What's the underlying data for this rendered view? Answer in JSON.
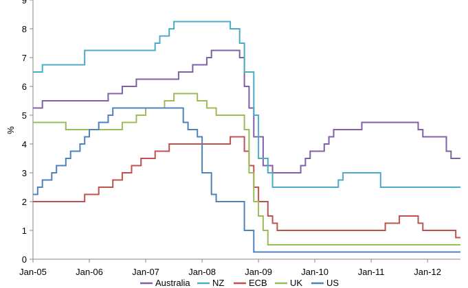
{
  "chart_data": {
    "type": "line",
    "title": "",
    "xlabel": "",
    "ylabel": "%",
    "ylim": [
      0,
      9
    ],
    "xlim": [
      "2005-01",
      "2012-08"
    ],
    "yticks": [
      "0",
      "1",
      "2",
      "3",
      "4",
      "5",
      "6",
      "7",
      "8",
      "9"
    ],
    "xticks": [
      {
        "label": "Jan-05",
        "date": "2005-01"
      },
      {
        "label": "Jan-06",
        "date": "2006-01"
      },
      {
        "label": "Jan-07",
        "date": "2007-01"
      },
      {
        "label": "Jan-08",
        "date": "2008-01"
      },
      {
        "label": "Jan-09",
        "date": "2009-01"
      },
      {
        "label": "Jan-10",
        "date": "2010-01"
      },
      {
        "label": "Jan-11",
        "date": "2011-01"
      },
      {
        "label": "Jan-12",
        "date": "2012-01"
      }
    ],
    "grid": false,
    "legend_position": "bottom",
    "series": [
      {
        "name": "Australia",
        "color": "#7F5FA8",
        "points": [
          [
            "2005-01",
            5.25
          ],
          [
            "2005-03",
            5.5
          ],
          [
            "2005-12",
            5.5
          ],
          [
            "2006-05",
            5.75
          ],
          [
            "2006-08",
            6.0
          ],
          [
            "2006-11",
            6.25
          ],
          [
            "2007-08",
            6.5
          ],
          [
            "2007-11",
            6.75
          ],
          [
            "2008-02",
            7.0
          ],
          [
            "2008-03",
            7.25
          ],
          [
            "2008-09",
            7.0
          ],
          [
            "2008-10",
            6.0
          ],
          [
            "2008-11",
            5.25
          ],
          [
            "2008-12",
            4.25
          ],
          [
            "2009-02",
            3.25
          ],
          [
            "2009-04",
            3.0
          ],
          [
            "2009-10",
            3.25
          ],
          [
            "2009-11",
            3.5
          ],
          [
            "2009-12",
            3.75
          ],
          [
            "2010-03",
            4.0
          ],
          [
            "2010-04",
            4.25
          ],
          [
            "2010-05",
            4.5
          ],
          [
            "2010-11",
            4.75
          ],
          [
            "2011-11",
            4.5
          ],
          [
            "2011-12",
            4.25
          ],
          [
            "2012-05",
            3.75
          ],
          [
            "2012-06",
            3.5
          ],
          [
            "2012-08",
            3.5
          ]
        ]
      },
      {
        "name": "NZ",
        "color": "#4BACC6",
        "points": [
          [
            "2005-01",
            6.5
          ],
          [
            "2005-03",
            6.75
          ],
          [
            "2005-12",
            7.25
          ],
          [
            "2006-01",
            7.25
          ],
          [
            "2007-03",
            7.5
          ],
          [
            "2007-04",
            7.75
          ],
          [
            "2007-06",
            8.0
          ],
          [
            "2007-07",
            8.25
          ],
          [
            "2008-07",
            8.0
          ],
          [
            "2008-09",
            7.5
          ],
          [
            "2008-10",
            6.5
          ],
          [
            "2008-12",
            5.0
          ],
          [
            "2009-01",
            3.5
          ],
          [
            "2009-03",
            3.0
          ],
          [
            "2009-04",
            2.5
          ],
          [
            "2010-06",
            2.75
          ],
          [
            "2010-07",
            3.0
          ],
          [
            "2011-03",
            2.5
          ],
          [
            "2012-08",
            2.5
          ]
        ]
      },
      {
        "name": "ECB",
        "color": "#C0504D",
        "points": [
          [
            "2005-01",
            2.0
          ],
          [
            "2005-12",
            2.25
          ],
          [
            "2006-03",
            2.5
          ],
          [
            "2006-06",
            2.75
          ],
          [
            "2006-08",
            3.0
          ],
          [
            "2006-10",
            3.25
          ],
          [
            "2006-12",
            3.5
          ],
          [
            "2007-03",
            3.75
          ],
          [
            "2007-06",
            4.0
          ],
          [
            "2008-07",
            4.25
          ],
          [
            "2008-10",
            3.75
          ],
          [
            "2008-11",
            3.25
          ],
          [
            "2008-12",
            2.5
          ],
          [
            "2009-01",
            2.0
          ],
          [
            "2009-03",
            1.5
          ],
          [
            "2009-04",
            1.25
          ],
          [
            "2009-05",
            1.0
          ],
          [
            "2011-04",
            1.25
          ],
          [
            "2011-07",
            1.5
          ],
          [
            "2011-11",
            1.25
          ],
          [
            "2011-12",
            1.0
          ],
          [
            "2012-07",
            0.75
          ],
          [
            "2012-08",
            0.75
          ]
        ]
      },
      {
        "name": "UK",
        "color": "#9BBB59",
        "points": [
          [
            "2005-01",
            4.75
          ],
          [
            "2005-08",
            4.5
          ],
          [
            "2006-08",
            4.75
          ],
          [
            "2006-11",
            5.0
          ],
          [
            "2007-01",
            5.25
          ],
          [
            "2007-05",
            5.5
          ],
          [
            "2007-07",
            5.75
          ],
          [
            "2007-12",
            5.5
          ],
          [
            "2008-02",
            5.25
          ],
          [
            "2008-04",
            5.0
          ],
          [
            "2008-10",
            4.5
          ],
          [
            "2008-11",
            3.0
          ],
          [
            "2008-12",
            2.0
          ],
          [
            "2009-01",
            1.5
          ],
          [
            "2009-02",
            1.0
          ],
          [
            "2009-03",
            0.5
          ],
          [
            "2012-08",
            0.5
          ]
        ]
      },
      {
        "name": "US",
        "color": "#4F81BD",
        "points": [
          [
            "2005-01",
            2.25
          ],
          [
            "2005-02",
            2.5
          ],
          [
            "2005-03",
            2.75
          ],
          [
            "2005-05",
            3.0
          ],
          [
            "2005-06",
            3.25
          ],
          [
            "2005-08",
            3.5
          ],
          [
            "2005-09",
            3.75
          ],
          [
            "2005-11",
            4.0
          ],
          [
            "2005-12",
            4.25
          ],
          [
            "2006-01",
            4.5
          ],
          [
            "2006-03",
            4.75
          ],
          [
            "2006-05",
            5.0
          ],
          [
            "2006-06",
            5.25
          ],
          [
            "2007-09",
            4.75
          ],
          [
            "2007-10",
            4.5
          ],
          [
            "2007-12",
            4.25
          ],
          [
            "2008-01",
            3.5
          ],
          [
            "2008-01",
            3.0
          ],
          [
            "2008-03",
            2.25
          ],
          [
            "2008-04",
            2.0
          ],
          [
            "2008-10",
            1.5
          ],
          [
            "2008-10",
            1.0
          ],
          [
            "2008-12",
            0.25
          ],
          [
            "2012-08",
            0.25
          ]
        ]
      }
    ]
  }
}
